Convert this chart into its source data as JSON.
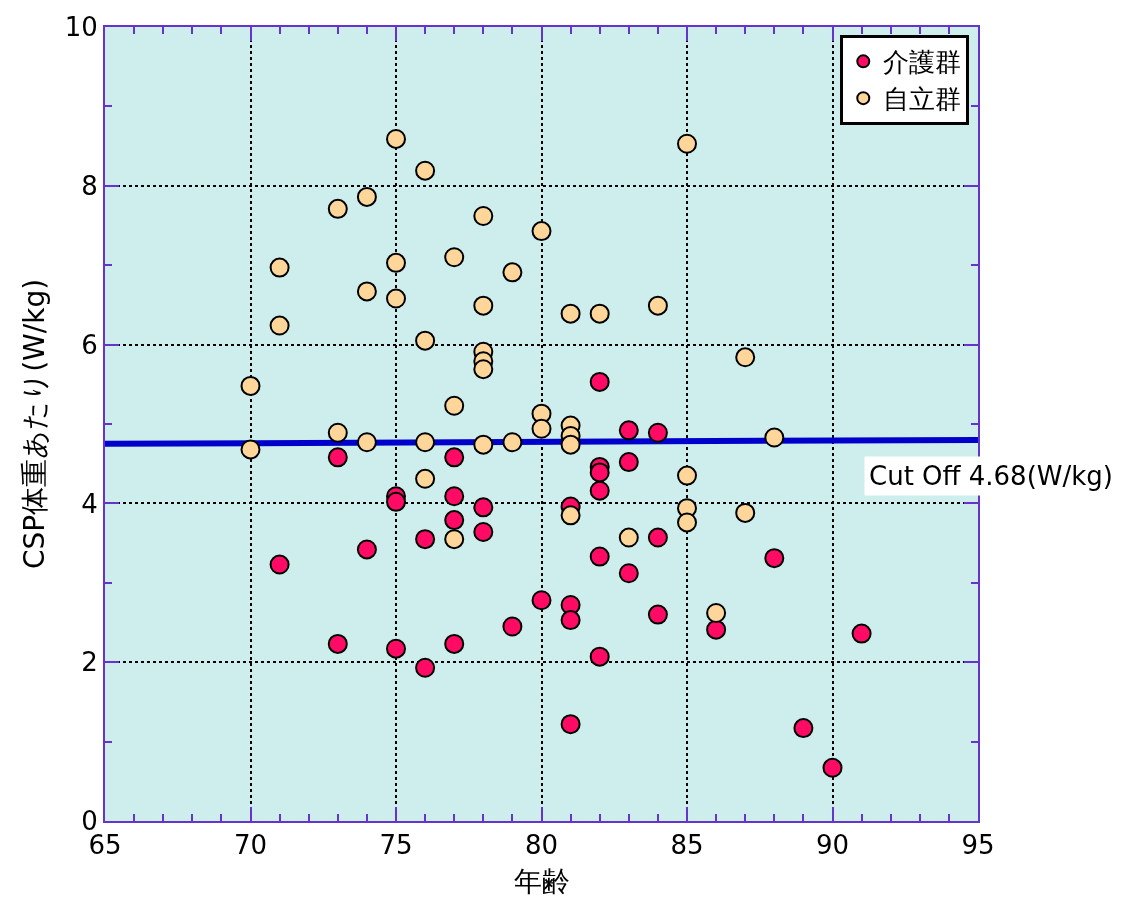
{
  "chart_data": {
    "type": "scatter",
    "xlabel": "年齢",
    "ylabel": "CSP体重あたり(W/kg)",
    "xlim": [
      65,
      95
    ],
    "ylim": [
      0,
      10
    ],
    "xticks": [
      65,
      70,
      75,
      80,
      85,
      90,
      95
    ],
    "yticks": [
      0,
      2,
      4,
      6,
      8,
      10
    ],
    "grid": true,
    "legend": "top right",
    "marker": "circle",
    "series": [
      {
        "name": "介護群",
        "color": "#ff0a64",
        "x": [
          71,
          73,
          73,
          74,
          75,
          75,
          75,
          76,
          76,
          77,
          77,
          77,
          77,
          78,
          78,
          79,
          80,
          81,
          81,
          81,
          81,
          82,
          82,
          82,
          82,
          82,
          82,
          83,
          83,
          83,
          84,
          84,
          84,
          86,
          88,
          89,
          90,
          91
        ],
        "values": [
          3.23,
          4.58,
          2.23,
          3.42,
          4.09,
          4.02,
          2.17,
          3.55,
          1.93,
          4.58,
          4.09,
          3.79,
          2.23,
          3.95,
          3.64,
          2.45,
          2.78,
          3.96,
          2.72,
          2.53,
          1.22,
          5.53,
          4.46,
          4.39,
          4.16,
          3.33,
          2.07,
          4.92,
          4.52,
          3.12,
          4.89,
          3.57,
          2.6,
          2.41,
          3.31,
          1.17,
          0.67,
          2.36
        ]
      },
      {
        "name": "自立群",
        "color": "#ffd699",
        "x": [
          70,
          70,
          71,
          71,
          73,
          73,
          74,
          74,
          74,
          75,
          75,
          75,
          76,
          76,
          76,
          76,
          77,
          77,
          77,
          78,
          78,
          78,
          78,
          78,
          78,
          79,
          79,
          80,
          80,
          80,
          81,
          81,
          81,
          81,
          81,
          82,
          83,
          84,
          85,
          85,
          85,
          85,
          86,
          87,
          87,
          88
        ],
        "values": [
          5.48,
          4.68,
          6.97,
          6.24,
          7.71,
          4.89,
          7.86,
          6.67,
          4.77,
          8.59,
          7.03,
          6.58,
          8.19,
          6.05,
          4.77,
          4.31,
          7.1,
          5.23,
          3.55,
          7.62,
          6.49,
          5.91,
          5.79,
          5.69,
          4.74,
          6.91,
          4.77,
          7.43,
          5.13,
          4.94,
          6.39,
          4.98,
          4.85,
          4.74,
          3.85,
          6.39,
          3.57,
          6.49,
          8.53,
          4.35,
          3.94,
          3.76,
          2.62,
          5.84,
          3.88,
          4.83
        ]
      },
      {
        "type": "line",
        "color": "#0000cc",
        "x": [
          65,
          95
        ],
        "values": [
          4.75,
          4.8
        ],
        "marker": "none"
      }
    ],
    "annotations": [
      "Cut Off 4.68(W/kg)"
    ]
  }
}
